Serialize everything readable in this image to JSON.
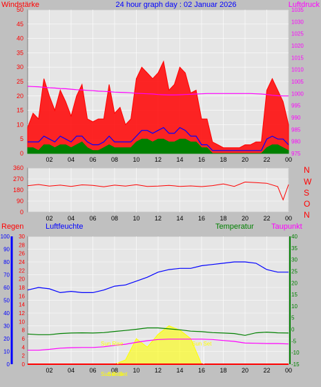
{
  "header": {
    "left_label": "Windstärke",
    "title": "24 hour graph day : 02 Januar 2026",
    "right_label": "Luftdruck"
  },
  "direction_letters": [
    "N",
    "W",
    "S",
    "O",
    "N"
  ],
  "lower_labels": {
    "rain": "Regen",
    "humidity": "Luftfeuchte",
    "temperature": "Temperatur",
    "dewpoint": "Taupunkt"
  },
  "sun_labels": {
    "rise": "Sun Rise",
    "set": "Sun Set",
    "bottom_rise": "Sun Rise",
    "bottom_set": "Sun Set"
  },
  "x_ticks": [
    "02",
    "04",
    "06",
    "08",
    "10",
    "12",
    "14",
    "16",
    "18",
    "20",
    "22",
    "00"
  ],
  "colors": {
    "background": "#c0c0c0",
    "plot": "#e6e6e6",
    "wind_gust": "#ff0000",
    "wind_avg": "#008000",
    "wind_speed": "#0000ff",
    "pressure": "#ff00ff",
    "direction": "#ff0000",
    "humidity": "#0000ff",
    "temperature": "#008000",
    "dewpoint": "#ff00ff",
    "solar": "#ffff00",
    "rain": "#ff0000"
  },
  "chart_data": [
    {
      "type": "line",
      "name": "wind-pressure",
      "y_left_ticks": [
        0,
        5,
        10,
        15,
        20,
        25,
        30,
        35,
        40,
        45,
        50
      ],
      "y_right_ticks": [
        975,
        980,
        985,
        990,
        995,
        1000,
        1005,
        1010,
        1015,
        1020,
        1025,
        1030,
        1035
      ],
      "ylim_left": [
        0,
        50
      ],
      "ylim_right": [
        975,
        1035
      ],
      "x_hours": [
        0,
        0.5,
        1,
        1.5,
        2,
        2.5,
        3,
        3.5,
        4,
        4.5,
        5,
        5.5,
        6,
        6.5,
        7,
        7.5,
        8,
        8.5,
        9,
        9.5,
        10,
        10.5,
        11,
        11.5,
        12,
        12.5,
        13,
        13.5,
        14,
        14.5,
        15,
        15.5,
        16,
        16.5,
        17,
        17.5,
        18,
        18.5,
        19,
        19.5,
        20,
        20.5,
        21,
        21.5,
        22,
        22.5,
        23,
        23.5,
        24
      ],
      "series": [
        {
          "key": "gust",
          "values": [
            9,
            14,
            12,
            26,
            20,
            15,
            22,
            18,
            13,
            20,
            24,
            12,
            11,
            12,
            12,
            24,
            14,
            16,
            10,
            12,
            26,
            30,
            28,
            26,
            28,
            32,
            22,
            24,
            30,
            28,
            21,
            22,
            12,
            12,
            4,
            3,
            2,
            2,
            2,
            2,
            3,
            3,
            4,
            4,
            22,
            26,
            22,
            18,
            10
          ]
        },
        {
          "key": "speed",
          "values": [
            4,
            4,
            4,
            6,
            5,
            4,
            6,
            5,
            4,
            6,
            6,
            4,
            3,
            3,
            4,
            6,
            4,
            4,
            4,
            4,
            6,
            8,
            8,
            7,
            8,
            9,
            7,
            7,
            9,
            8,
            6,
            6,
            3,
            3,
            1,
            1,
            1,
            1,
            1,
            1,
            1,
            1,
            1,
            1,
            5,
            6,
            5,
            5,
            3
          ]
        },
        {
          "key": "average",
          "values": [
            2,
            2,
            1,
            3,
            3,
            2,
            3,
            3,
            2,
            3,
            4,
            2,
            1,
            1,
            2,
            3,
            2,
            2,
            2,
            2,
            4,
            5,
            5,
            4,
            5,
            5,
            4,
            4,
            5,
            5,
            4,
            4,
            2,
            2,
            0,
            0,
            0,
            0,
            0,
            0,
            0,
            0,
            0,
            0,
            2,
            3,
            3,
            2,
            1
          ]
        },
        {
          "key": "pressure",
          "values": [
            1003.0,
            1002.9,
            1002.8,
            1002.6,
            1002.4,
            1002.3,
            1002.1,
            1002.0,
            1001.8,
            1001.6,
            1001.5,
            1001.3,
            1001.2,
            1001.0,
            1000.9,
            1000.8,
            1000.6,
            1000.5,
            1000.4,
            1000.3,
            1000.1,
            1000.0,
            999.9,
            999.8,
            999.6,
            999.5,
            999.4,
            999.4,
            999.5,
            999.6,
            999.7,
            999.8,
            999.9,
            1000.0,
            1000.0,
            1000.0,
            1000.0,
            1000.0,
            1000.0,
            1000.0,
            1000.0,
            1000.0,
            999.9,
            999.8,
            999.6,
            999.3,
            999.1,
            999.0,
            999.0
          ]
        }
      ]
    },
    {
      "type": "line",
      "name": "wind-direction",
      "y_ticks": [
        0,
        90,
        180,
        270,
        360
      ],
      "ylim": [
        0,
        360
      ],
      "x_hours": [
        0,
        1,
        2,
        3,
        4,
        5,
        6,
        7,
        8,
        9,
        10,
        11,
        12,
        13,
        14,
        15,
        16,
        17,
        18,
        19,
        20,
        21,
        22,
        23,
        23.5,
        24
      ],
      "values": [
        215,
        225,
        212,
        220,
        210,
        222,
        218,
        207,
        220,
        212,
        224,
        210,
        212,
        218,
        210,
        214,
        208,
        216,
        230,
        210,
        245,
        240,
        235,
        208,
        100,
        225
      ]
    },
    {
      "type": "line",
      "name": "climate",
      "y_humidity_ticks": [
        0,
        10,
        20,
        30,
        40,
        50,
        60,
        70,
        80,
        90,
        100
      ],
      "y_rain_ticks": [
        0,
        2,
        4,
        6,
        8,
        10,
        12,
        14,
        16,
        18,
        20,
        22,
        24,
        26,
        28,
        30
      ],
      "y_temp_ticks": [
        -15,
        -10,
        -5,
        0,
        5,
        10,
        15,
        20,
        25,
        30,
        35,
        40
      ],
      "ylim_humidity": [
        0,
        100
      ],
      "ylim_rain": [
        0,
        30
      ],
      "ylim_temp": [
        -15,
        40
      ],
      "x_hours": [
        0,
        1,
        2,
        3,
        4,
        5,
        6,
        7,
        8,
        9,
        10,
        11,
        12,
        13,
        14,
        15,
        16,
        17,
        18,
        19,
        20,
        21,
        22,
        23,
        24
      ],
      "series": [
        {
          "key": "humidity",
          "values": [
            58,
            60,
            59,
            56,
            57,
            56,
            56,
            58,
            61,
            62,
            65,
            68,
            72,
            74,
            75,
            75,
            77,
            78,
            79,
            80,
            80,
            79,
            74,
            72,
            72
          ]
        },
        {
          "key": "temperature",
          "values": [
            -2.0,
            -2.3,
            -2.3,
            -1.8,
            -1.6,
            -1.5,
            -1.6,
            -1.4,
            -0.9,
            -0.5,
            0.0,
            0.6,
            0.6,
            0.2,
            -0.2,
            -0.8,
            -1.0,
            -1.4,
            -1.6,
            -1.8,
            -2.6,
            -1.5,
            -1.2,
            -1.5,
            -1.6
          ]
        },
        {
          "key": "dewpoint",
          "values": [
            -9.0,
            -9.0,
            -8.6,
            -8.1,
            -7.9,
            -7.8,
            -7.8,
            -7.5,
            -6.9,
            -6.4,
            -5.6,
            -4.9,
            -4.4,
            -4.2,
            -4.2,
            -4.2,
            -4.2,
            -4.4,
            -4.8,
            -5.2,
            -5.9,
            -6.0,
            -6.1,
            -6.1,
            -6.3
          ]
        },
        {
          "key": "solar",
          "values": [
            0,
            0,
            0,
            0,
            0,
            0,
            0,
            0,
            0,
            1,
            6,
            4,
            7,
            9,
            8,
            6,
            0,
            0,
            0,
            0,
            0,
            0,
            0,
            0,
            0
          ]
        },
        {
          "key": "rain",
          "values": [
            0,
            0,
            0,
            0,
            0,
            0,
            0,
            0,
            0,
            0,
            0,
            0,
            0,
            0,
            0,
            0,
            0,
            0,
            0,
            0,
            0,
            0,
            0,
            0,
            0
          ]
        }
      ],
      "sunrise_hour": 8.3,
      "sunset_hour": 16.2
    }
  ]
}
